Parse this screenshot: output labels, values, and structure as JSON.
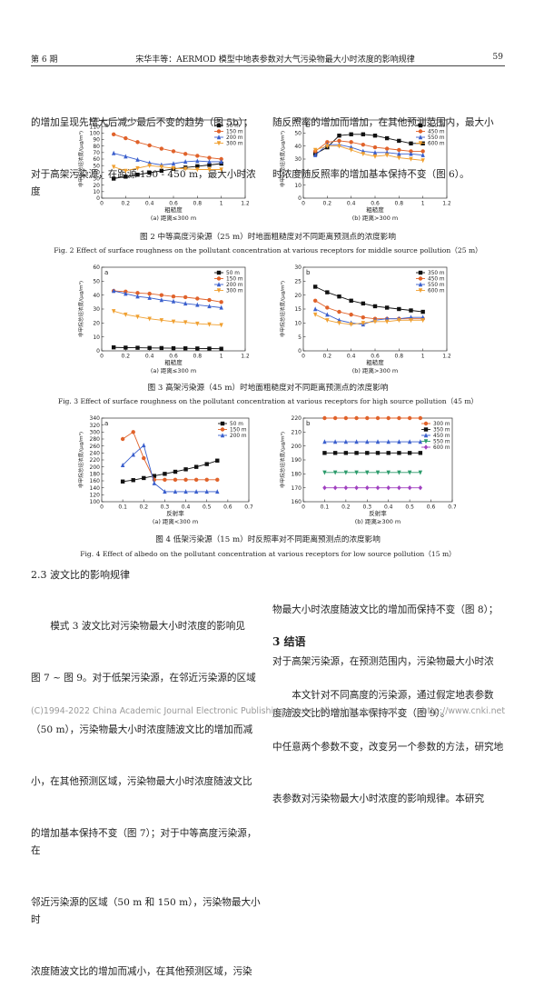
{
  "header": {
    "left": "第 6 期",
    "center": "宋华丰等：AERMOD 模型中地表参数对大气污染物最大小时浓度的影响规律",
    "page": "59"
  },
  "top_left_lines": [
    "的增加呈现先增大后减少最后不变的趋势（图 5b）；",
    "对于高架污染源，在距源 150 - 450 m，最大小时浓度"
  ],
  "top_right_lines": [
    "随反照率的增加而增加，在其他预测范围内，最大小",
    "时浓度随反照率的增加基本保持不变（图 6）。"
  ],
  "captions": [
    {
      "cn": "图 2    中等高度污染源（25 m）时地面粗糙度对不同距离预测点的浓度影响",
      "en": "Fig. 2    Effect of surface roughness on the pollutant concentration at various receptors for middle source pollution（25 m）"
    },
    {
      "cn": "图 3    高架污染源（45 m）时地面粗糙度对不同距离预测点的浓度影响",
      "en": "Fig. 3    Effect of surface roughness on the pollutant concentration at various receptors for high source pollution（45 m）"
    },
    {
      "cn": "图 4    低架污染源（15 m）时反照率对不同距离预测点的浓度影响",
      "en": "Fig. 4    Effect of albedo on the pollutant concentration at various receptors for low source pollution（15 m）"
    }
  ],
  "section_23": "2.3    波文比的影响规律",
  "left_col": [
    "模式 3 波文比对污染物最大小时浓度的影响见",
    "图 7 ~ 图 9。对于低架污染源，在邻近污染源的区域",
    "（50 m），污染物最大小时浓度随波文比的增加而减",
    "小，在其他预测区域，污染物最大小时浓度随波文比",
    "的增加基本保持不变（图 7）；对于中等高度污染源，在",
    "邻近污染源的区域（50 m 和 150 m），污染物最大小时",
    "浓度随波文比的增加而减小，在其他预测区域，污染"
  ],
  "right_col": [
    "物最大小时浓度随波文比的增加而保持不变（图 8）；",
    "对于高架污染源，在预测范围内，污染物最大小时浓",
    "度随波文比的增加基本保持不变（图 9）。"
  ],
  "section_3": "3    结语",
  "right_col2": [
    "本文针对不同高度的污染源，通过假定地表参数",
    "中任意两个参数不变，改变另一个参数的方法，研究地",
    "表参数对污染物最大小时浓度的影响规律。本研究"
  ],
  "footer": {
    "left": "(C)1994-2022 China Academic Journal Electronic Publishing House. All rights reserved.",
    "right": "http://www.cnki.net"
  },
  "chart_data": [
    {
      "id": "fig2a",
      "letter": "a",
      "type": "line",
      "xlabel": "粗糙度",
      "ylabel": "非甲烷总烃浓度/(μg/m³)",
      "sub": "(a) 距离≤300 m",
      "xlim": [
        0,
        1.2
      ],
      "ylim": [
        0,
        120
      ],
      "xticks": [
        0,
        0.2,
        0.4,
        0.6,
        0.8,
        1.0,
        1.2
      ],
      "yticks": [
        0,
        10,
        20,
        30,
        40,
        50,
        60,
        70,
        80,
        90,
        100,
        110,
        120
      ],
      "x": [
        0.1,
        0.2,
        0.3,
        0.4,
        0.5,
        0.6,
        0.7,
        0.8,
        0.9,
        1.0
      ],
      "series": [
        {
          "name": "50 m",
          "color": "#111111",
          "marker": "square",
          "values": [
            30,
            33,
            36,
            39,
            42,
            45,
            47,
            49,
            51,
            53
          ]
        },
        {
          "name": "150 m",
          "color": "#e0622a",
          "marker": "circle",
          "values": [
            98,
            92,
            86,
            81,
            76,
            72,
            68,
            65,
            62,
            60
          ]
        },
        {
          "name": "200 m",
          "color": "#3a5fcd",
          "marker": "triangle",
          "values": [
            69,
            64,
            59,
            54,
            51,
            53,
            56,
            57,
            56,
            56
          ]
        },
        {
          "name": "300 m",
          "color": "#f0a030",
          "marker": "tri-down",
          "values": [
            48,
            42,
            46,
            50,
            48,
            46,
            45,
            44,
            44,
            44
          ]
        }
      ]
    },
    {
      "id": "fig2b",
      "letter": "b",
      "type": "line",
      "xlabel": "粗糙度",
      "ylabel": "非甲烷总烃浓度/(μg/m³)",
      "sub": "(b) 距离>300 m",
      "xlim": [
        0,
        1.2
      ],
      "ylim": [
        0,
        60
      ],
      "xticks": [
        0,
        0.2,
        0.4,
        0.6,
        0.8,
        1.0,
        1.2
      ],
      "yticks": [
        0,
        10,
        20,
        30,
        40,
        50,
        60
      ],
      "x": [
        0.1,
        0.2,
        0.3,
        0.4,
        0.5,
        0.6,
        0.7,
        0.8,
        0.9,
        1.0
      ],
      "series": [
        {
          "name": "350 m",
          "color": "#111111",
          "marker": "square",
          "values": [
            34,
            39,
            48,
            49,
            49,
            48,
            46,
            44,
            42,
            42
          ]
        },
        {
          "name": "450 m",
          "color": "#e0622a",
          "marker": "circle",
          "values": [
            36,
            43,
            44,
            43,
            41,
            39,
            38,
            37,
            36,
            36
          ]
        },
        {
          "name": "550 m",
          "color": "#3a5fcd",
          "marker": "triangle",
          "values": [
            33,
            41,
            41,
            39,
            36,
            35,
            35,
            34,
            34,
            33
          ]
        },
        {
          "name": "600 m",
          "color": "#f0a030",
          "marker": "tri-down",
          "values": [
            37,
            40,
            40,
            37,
            34,
            32,
            33,
            31,
            30,
            29
          ]
        }
      ]
    },
    {
      "id": "fig3a",
      "letter": "a",
      "type": "line",
      "xlabel": "粗糙度",
      "ylabel": "非甲烷总烃浓度/(μg/m³)",
      "sub": "(a) 距离≤300 m",
      "xlim": [
        0,
        1.2
      ],
      "ylim": [
        0,
        60
      ],
      "xticks": [
        0,
        0.2,
        0.4,
        0.6,
        0.8,
        1.0,
        1.2
      ],
      "yticks": [
        0,
        10,
        20,
        30,
        40,
        50,
        60
      ],
      "x": [
        0.1,
        0.2,
        0.3,
        0.4,
        0.5,
        0.6,
        0.7,
        0.8,
        0.9,
        1.0
      ],
      "series": [
        {
          "name": "50 m",
          "color": "#111111",
          "marker": "square",
          "values": [
            2.5,
            2.3,
            2.2,
            2.1,
            2.0,
            1.9,
            1.8,
            1.7,
            1.6,
            1.5
          ]
        },
        {
          "name": "150 m",
          "color": "#e0622a",
          "marker": "circle",
          "values": [
            43,
            42.5,
            41.5,
            41,
            40,
            39,
            38.5,
            37.5,
            36.5,
            35
          ]
        },
        {
          "name": "200 m",
          "color": "#3a5fcd",
          "marker": "triangle",
          "values": [
            43,
            41,
            39,
            38,
            36.5,
            35.5,
            34,
            33,
            32,
            31
          ]
        },
        {
          "name": "300 m",
          "color": "#f0a030",
          "marker": "tri-down",
          "values": [
            28.5,
            26,
            24.5,
            23,
            22,
            21,
            20.5,
            19.5,
            19,
            18.5
          ]
        }
      ]
    },
    {
      "id": "fig3b",
      "letter": "b",
      "type": "line",
      "xlabel": "粗糙度",
      "ylabel": "非甲烷总烃浓度/(μg/m³)",
      "sub": "(b) 距离>300 m",
      "xlim": [
        0,
        1.2
      ],
      "ylim": [
        0,
        30
      ],
      "xticks": [
        0,
        0.2,
        0.4,
        0.6,
        0.8,
        1.0,
        1.2
      ],
      "yticks": [
        0,
        5,
        10,
        15,
        20,
        25,
        30
      ],
      "x": [
        0.1,
        0.2,
        0.3,
        0.4,
        0.5,
        0.6,
        0.7,
        0.8,
        0.9,
        1.0
      ],
      "series": [
        {
          "name": "350 m",
          "color": "#111111",
          "marker": "square",
          "values": [
            23,
            21,
            19.5,
            18,
            17,
            16,
            15.5,
            15,
            14.5,
            14
          ]
        },
        {
          "name": "450 m",
          "color": "#e0622a",
          "marker": "circle",
          "values": [
            18,
            15.5,
            14,
            13,
            12,
            11.5,
            11.5,
            11.5,
            11.5,
            11.5
          ]
        },
        {
          "name": "550 m",
          "color": "#3a5fcd",
          "marker": "triangle",
          "values": [
            15,
            13,
            11,
            10,
            9.5,
            11,
            11.5,
            11.5,
            12,
            12
          ]
        },
        {
          "name": "600 m",
          "color": "#f0a030",
          "marker": "tri-down",
          "values": [
            13,
            11,
            10,
            9.5,
            10,
            10.5,
            10.5,
            11,
            11,
            11
          ]
        }
      ]
    },
    {
      "id": "fig4a",
      "letter": "a",
      "type": "line",
      "xlabel": "反射率",
      "ylabel": "非甲烷总烃浓度/(μg/m³)",
      "sub": "(a) 距离<300 m",
      "xlim": [
        0,
        0.7
      ],
      "ylim": [
        100,
        340
      ],
      "xticks": [
        0,
        0.1,
        0.2,
        0.3,
        0.4,
        0.5,
        0.6,
        0.7
      ],
      "yticks": [
        100,
        120,
        140,
        160,
        180,
        200,
        220,
        240,
        260,
        280,
        300,
        320,
        340
      ],
      "x": [
        0.1,
        0.15,
        0.2,
        0.25,
        0.3,
        0.35,
        0.4,
        0.45,
        0.5,
        0.55
      ],
      "series": [
        {
          "name": "50 m",
          "color": "#111111",
          "marker": "square",
          "values": [
            158,
            162,
            168,
            174,
            180,
            186,
            193,
            200,
            208,
            218
          ]
        },
        {
          "name": "150 m",
          "color": "#e0622a",
          "marker": "circle",
          "values": [
            280,
            300,
            225,
            163,
            163,
            163,
            163,
            163,
            163,
            163
          ]
        },
        {
          "name": "200 m",
          "color": "#3a5fcd",
          "marker": "triangle",
          "values": [
            205,
            235,
            262,
            153,
            129,
            129,
            129,
            129,
            129,
            129
          ]
        }
      ]
    },
    {
      "id": "fig4b",
      "letter": "b",
      "type": "line",
      "xlabel": "反射率",
      "ylabel": "非甲烷总烃浓度/(μg/m³)",
      "sub": "(b) 距离≥300 m",
      "xlim": [
        0,
        0.7
      ],
      "ylim": [
        160,
        220
      ],
      "xticks": [
        0,
        0.1,
        0.2,
        0.3,
        0.4,
        0.5,
        0.6,
        0.7
      ],
      "yticks": [
        160,
        170,
        180,
        190,
        200,
        210,
        220
      ],
      "x": [
        0.1,
        0.15,
        0.2,
        0.25,
        0.3,
        0.35,
        0.4,
        0.45,
        0.5,
        0.55
      ],
      "series": [
        {
          "name": "300 m",
          "color": "#e0622a",
          "marker": "circle",
          "values": [
            220,
            220,
            220,
            220,
            220,
            220,
            220,
            220,
            220,
            220
          ]
        },
        {
          "name": "350 m",
          "color": "#111111",
          "marker": "square",
          "values": [
            195,
            195,
            195,
            195,
            195,
            195,
            195,
            195,
            195,
            195
          ]
        },
        {
          "name": "450 m",
          "color": "#3a5fcd",
          "marker": "triangle",
          "values": [
            203,
            203,
            203,
            203,
            203,
            203,
            203,
            203,
            203,
            203
          ]
        },
        {
          "name": "550 m",
          "color": "#2a9a6a",
          "marker": "tri-down",
          "values": [
            181,
            181,
            181,
            181,
            181,
            181,
            181,
            181,
            181,
            181
          ]
        },
        {
          "name": "600 m",
          "color": "#a040c0",
          "marker": "diamond",
          "values": [
            170,
            170,
            170,
            170,
            170,
            170,
            170,
            170,
            170,
            170
          ]
        }
      ]
    }
  ]
}
